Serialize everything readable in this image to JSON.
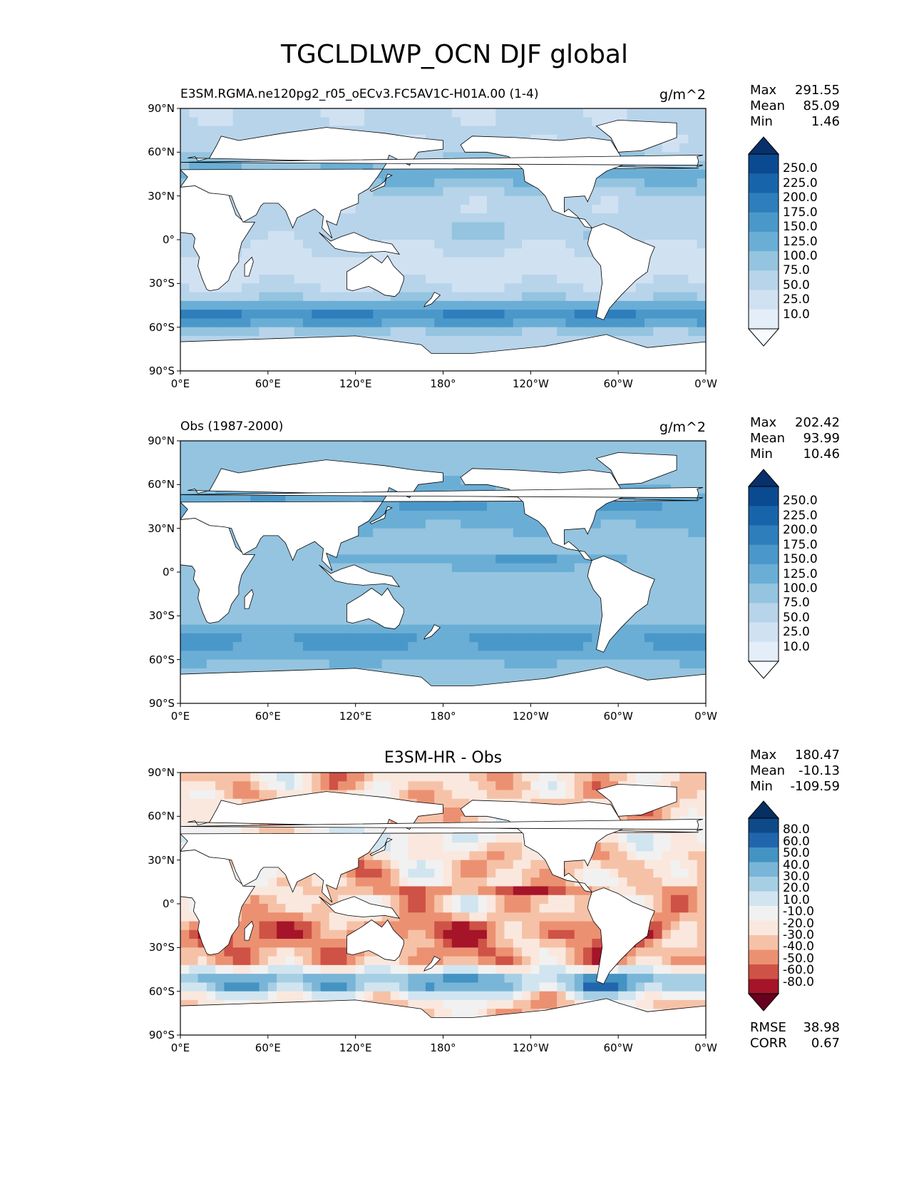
{
  "figure": {
    "title": "TGCLDLWP_OCN DJF global"
  },
  "colors": {
    "blues": [
      "#f7fbff",
      "#e3eef8",
      "#d0e1f2",
      "#b7d4ea",
      "#94c4df",
      "#6aaed6",
      "#4a98c9",
      "#2e7ebc",
      "#1864aa",
      "#0a4a90",
      "#08306b"
    ],
    "diverging": [
      "#67001f",
      "#a51429",
      "#cf5246",
      "#eb9172",
      "#f6c2a7",
      "#fae8de",
      "#f1f1f1",
      "#d1e5f0",
      "#a7cfe4",
      "#79b5d7",
      "#4393c3",
      "#2166ac",
      "#0d4a87",
      "#053061"
    ],
    "coast": "#000000",
    "land": "#ffffff"
  },
  "panels": [
    {
      "id": "test",
      "left_title": "E3SM.RGMA.ne120pg2_r05_oECv3.FC5AV1C-H01A.00 (1-4)",
      "right_title": "g/m^2",
      "center_title": "",
      "stats": [
        {
          "label": "Max",
          "value": "291.55"
        },
        {
          "label": "Mean",
          "value": "85.09"
        },
        {
          "label": "Min",
          "value": "1.46"
        }
      ],
      "colorbar_labels": [
        "250.0",
        "225.0",
        "200.0",
        "175.0",
        "150.0",
        "125.0",
        "100.0",
        "75.0",
        "50.0",
        "25.0",
        "10.0"
      ]
    },
    {
      "id": "ref",
      "left_title": "Obs (1987-2000)",
      "right_title": "g/m^2",
      "center_title": "",
      "stats": [
        {
          "label": "Max",
          "value": "202.42"
        },
        {
          "label": "Mean",
          "value": "93.99"
        },
        {
          "label": "Min",
          "value": "10.46"
        }
      ],
      "colorbar_labels": [
        "250.0",
        "225.0",
        "200.0",
        "175.0",
        "150.0",
        "125.0",
        "100.0",
        "75.0",
        "50.0",
        "25.0",
        "10.0"
      ]
    },
    {
      "id": "diff",
      "left_title": "",
      "right_title": "",
      "center_title": "E3SM-HR - Obs",
      "stats": [
        {
          "label": "Max",
          "value": "180.47"
        },
        {
          "label": "Mean",
          "value": "-10.13"
        },
        {
          "label": "Min",
          "value": "-109.59"
        }
      ],
      "colorbar_labels": [
        "80.0",
        "60.0",
        "50.0",
        "40.0",
        "30.0",
        "20.0",
        "10.0",
        "-10.0",
        "-20.0",
        "-30.0",
        "-40.0",
        "-50.0",
        "-60.0",
        "-80.0"
      ],
      "extra_stats": [
        {
          "label": "RMSE",
          "value": "38.98"
        },
        {
          "label": "CORR",
          "value": "0.67"
        }
      ]
    }
  ],
  "chart_data": [
    {
      "type": "heatmap",
      "title": "E3SM.RGMA.ne120pg2_r05_oECv3.FC5AV1C-H01A.00 (1-4)",
      "units": "g/m^2",
      "x_ticks": [
        "0°E",
        "60°E",
        "120°E",
        "180°",
        "120°W",
        "60°W",
        "0°W"
      ],
      "y_ticks": [
        "90°N",
        "60°N",
        "30°N",
        "0°",
        "30°S",
        "60°S",
        "90°S"
      ],
      "xlim": [
        0,
        360
      ],
      "ylim": [
        -90,
        90
      ],
      "levels": [
        10,
        25,
        50,
        75,
        100,
        125,
        150,
        175,
        200,
        225,
        250
      ],
      "max": 291.55,
      "mean": 85.09,
      "min": 1.46
    },
    {
      "type": "heatmap",
      "title": "Obs (1987-2000)",
      "units": "g/m^2",
      "x_ticks": [
        "0°E",
        "60°E",
        "120°E",
        "180°",
        "120°W",
        "60°W",
        "0°W"
      ],
      "y_ticks": [
        "90°N",
        "60°N",
        "30°N",
        "0°",
        "30°S",
        "60°S",
        "90°S"
      ],
      "xlim": [
        0,
        360
      ],
      "ylim": [
        -90,
        90
      ],
      "levels": [
        10,
        25,
        50,
        75,
        100,
        125,
        150,
        175,
        200,
        225,
        250
      ],
      "max": 202.42,
      "mean": 93.99,
      "min": 10.46
    },
    {
      "type": "heatmap",
      "title": "E3SM-HR - Obs",
      "x_ticks": [
        "0°E",
        "60°E",
        "120°E",
        "180°",
        "120°W",
        "60°W",
        "0°W"
      ],
      "y_ticks": [
        "90°N",
        "60°N",
        "30°N",
        "0°",
        "30°S",
        "60°S",
        "90°S"
      ],
      "xlim": [
        0,
        360
      ],
      "ylim": [
        -90,
        90
      ],
      "levels": [
        -80,
        -60,
        -50,
        -40,
        -30,
        -20,
        -10,
        10,
        20,
        30,
        40,
        50,
        60,
        80
      ],
      "max": 180.47,
      "mean": -10.13,
      "min": -109.59,
      "rmse": 38.98,
      "corr": 0.67
    }
  ]
}
